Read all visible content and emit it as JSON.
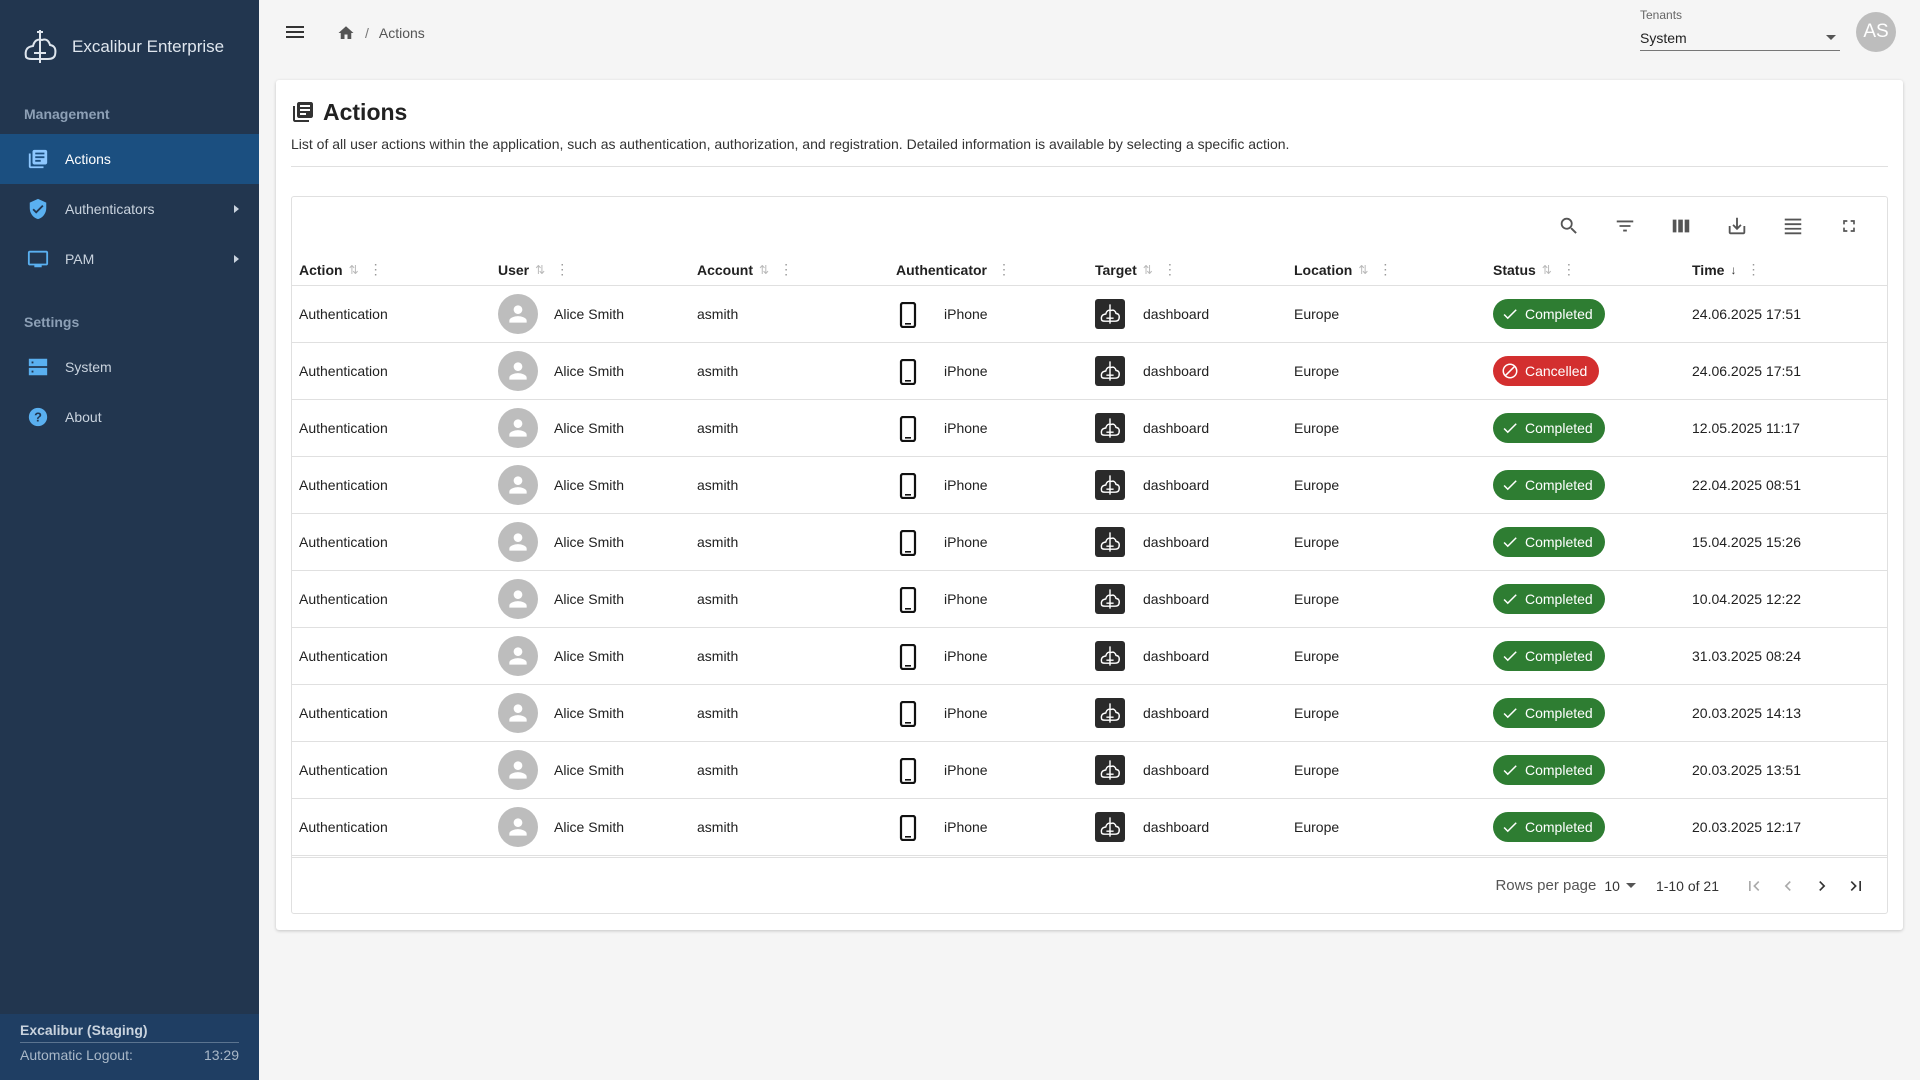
{
  "app": {
    "name": "Excalibur Enterprise"
  },
  "sidebar": {
    "sections": [
      {
        "label": "Management"
      },
      {
        "label": "Settings"
      }
    ],
    "items": [
      {
        "label": "Actions",
        "icon": "actions-icon"
      },
      {
        "label": "Authenticators",
        "icon": "shield-icon"
      },
      {
        "label": "PAM",
        "icon": "monitor-icon"
      },
      {
        "label": "System",
        "icon": "system-icon"
      },
      {
        "label": "About",
        "icon": "help-icon"
      }
    ],
    "footer": {
      "environment": "Excalibur (Staging)",
      "logout_label": "Automatic Logout:",
      "logout_time": "13:29"
    }
  },
  "topbar": {
    "breadcrumb_current": "Actions",
    "tenant_label": "Tenants",
    "tenant_value": "System",
    "avatar_initials": "AS"
  },
  "page": {
    "title": "Actions",
    "description": "List of all user actions within the application, such as authentication, authorization, and registration. Detailed information is available by selecting a specific action."
  },
  "table": {
    "columns": [
      "Action",
      "User",
      "Account",
      "Authenticator",
      "Target",
      "Location",
      "Status",
      "Time"
    ],
    "rows": [
      {
        "action": "Authentication",
        "user": "Alice Smith",
        "account": "asmith",
        "authenticator": "iPhone",
        "target": "dashboard",
        "location": "Europe",
        "status": "Completed",
        "time": "24.06.2025 17:51"
      },
      {
        "action": "Authentication",
        "user": "Alice Smith",
        "account": "asmith",
        "authenticator": "iPhone",
        "target": "dashboard",
        "location": "Europe",
        "status": "Cancelled",
        "time": "24.06.2025 17:51"
      },
      {
        "action": "Authentication",
        "user": "Alice Smith",
        "account": "asmith",
        "authenticator": "iPhone",
        "target": "dashboard",
        "location": "Europe",
        "status": "Completed",
        "time": "12.05.2025 11:17"
      },
      {
        "action": "Authentication",
        "user": "Alice Smith",
        "account": "asmith",
        "authenticator": "iPhone",
        "target": "dashboard",
        "location": "Europe",
        "status": "Completed",
        "time": "22.04.2025 08:51"
      },
      {
        "action": "Authentication",
        "user": "Alice Smith",
        "account": "asmith",
        "authenticator": "iPhone",
        "target": "dashboard",
        "location": "Europe",
        "status": "Completed",
        "time": "15.04.2025 15:26"
      },
      {
        "action": "Authentication",
        "user": "Alice Smith",
        "account": "asmith",
        "authenticator": "iPhone",
        "target": "dashboard",
        "location": "Europe",
        "status": "Completed",
        "time": "10.04.2025 12:22"
      },
      {
        "action": "Authentication",
        "user": "Alice Smith",
        "account": "asmith",
        "authenticator": "iPhone",
        "target": "dashboard",
        "location": "Europe",
        "status": "Completed",
        "time": "31.03.2025 08:24"
      },
      {
        "action": "Authentication",
        "user": "Alice Smith",
        "account": "asmith",
        "authenticator": "iPhone",
        "target": "dashboard",
        "location": "Europe",
        "status": "Completed",
        "time": "20.03.2025 14:13"
      },
      {
        "action": "Authentication",
        "user": "Alice Smith",
        "account": "asmith",
        "authenticator": "iPhone",
        "target": "dashboard",
        "location": "Europe",
        "status": "Completed",
        "time": "20.03.2025 13:51"
      },
      {
        "action": "Authentication",
        "user": "Alice Smith",
        "account": "asmith",
        "authenticator": "iPhone",
        "target": "dashboard",
        "location": "Europe",
        "status": "Completed",
        "time": "20.03.2025 12:17"
      }
    ]
  },
  "pagination": {
    "rows_per_page_label": "Rows per page",
    "rows_per_page": "10",
    "range": "1-10 of 21"
  },
  "colors": {
    "sidebar_bg": "#22364f",
    "sidebar_active": "#1b4f80",
    "completed": "#2e7d32",
    "cancelled": "#d32f2f"
  }
}
